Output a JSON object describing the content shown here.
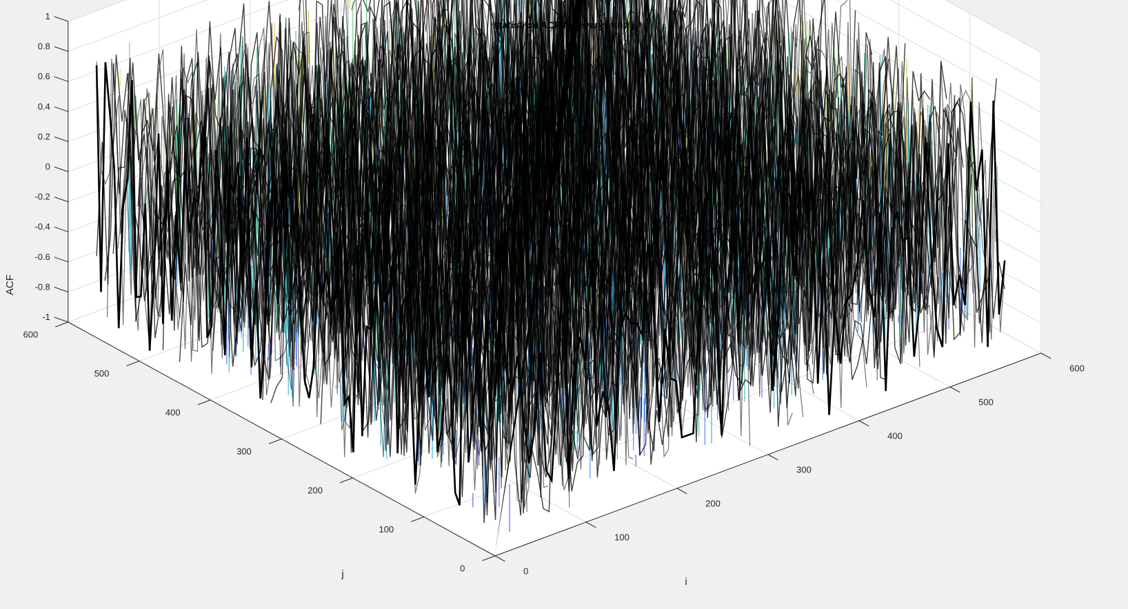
{
  "chart_data": {
    "type": "surface",
    "title": "statistical ACF for every i and j",
    "xlabel": "i",
    "ylabel": "j",
    "zlabel": "ACF",
    "xlim": [
      0,
      600
    ],
    "ylim": [
      0,
      600
    ],
    "zlim": [
      -1,
      1
    ],
    "xticks": [
      "0",
      "100",
      "200",
      "300",
      "400",
      "500",
      "600"
    ],
    "yticks": [
      "0",
      "100",
      "200",
      "300",
      "400",
      "500",
      "600"
    ],
    "zticks": [
      "-1",
      "-0.8",
      "-0.6",
      "-0.4",
      "-0.2",
      "0",
      "0.2",
      "0.4",
      "0.6",
      "0.8",
      "1"
    ],
    "grid": true,
    "colormap": "parula",
    "edge_color": "#000000",
    "background": "#f0f0f0",
    "diagonal_value": 1,
    "off_diagonal_range": [
      -0.9,
      0.9
    ],
    "grid_size": 560
  }
}
